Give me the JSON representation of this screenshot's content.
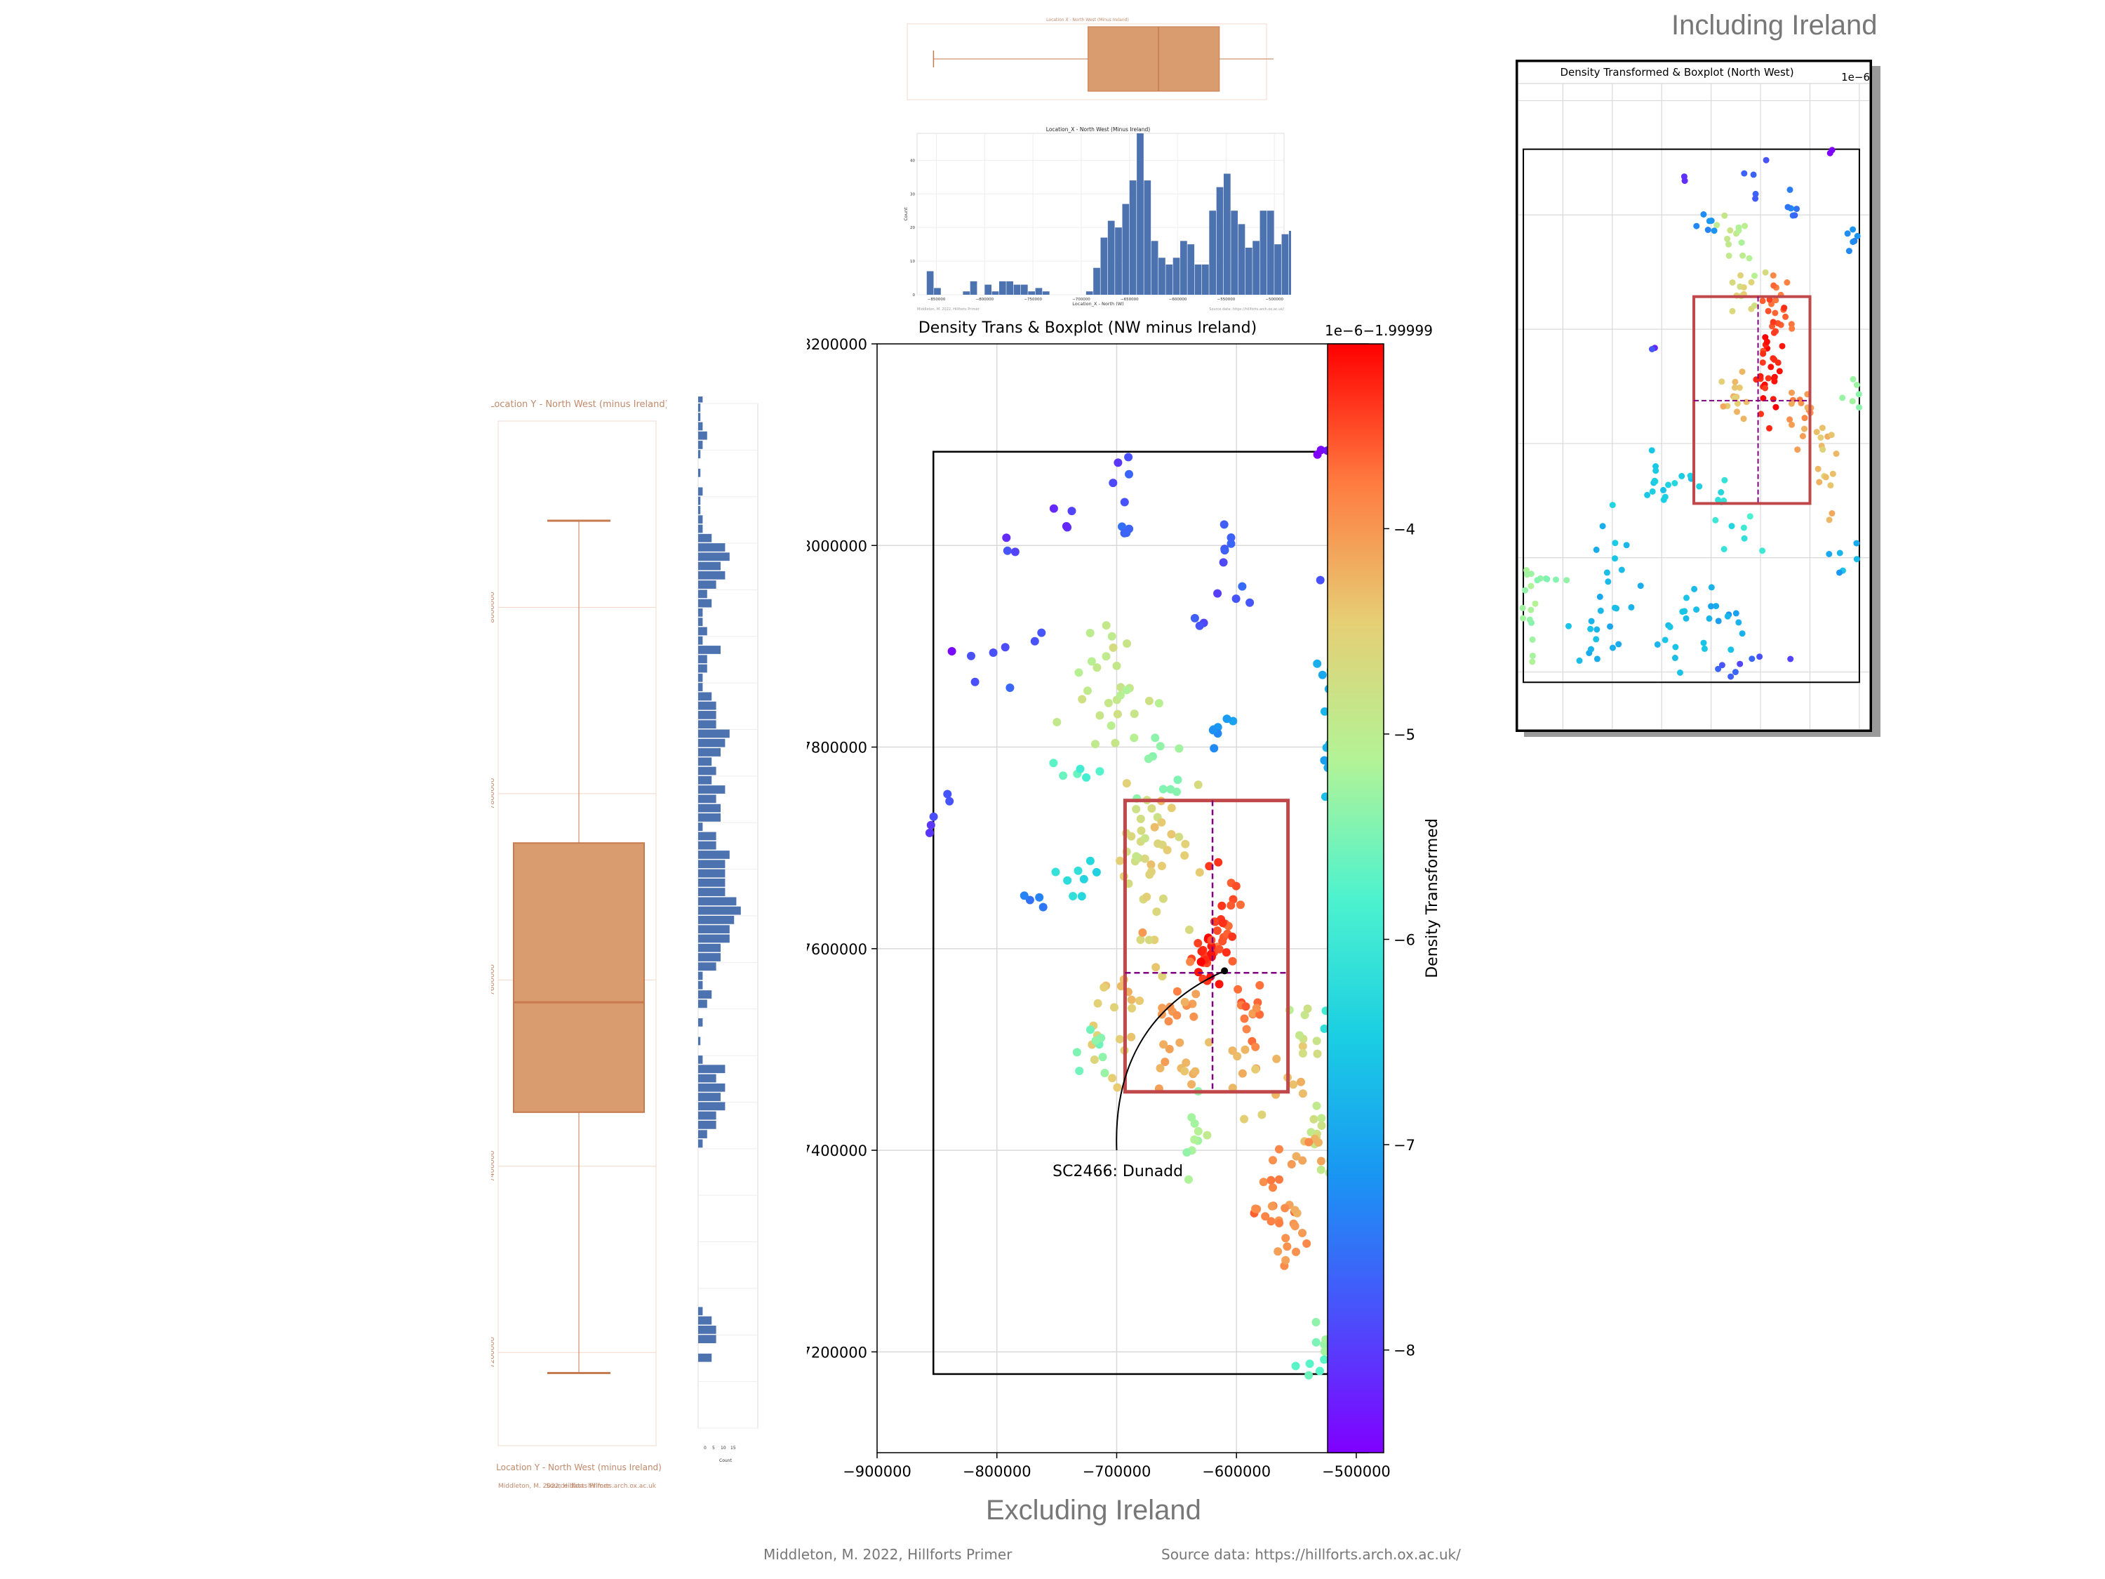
{
  "page": {
    "caption_excluding": "Excluding Ireland",
    "caption_including": "Including Ireland",
    "credit_left": "Middleton, M. 2022, Hillforts Primer",
    "credit_right": "Source data: https://hillforts.arch.ox.ac.uk/"
  },
  "colors": {
    "box_fill": "#d99c6e",
    "box_edge": "#c77a4f",
    "hist_bar": "#4c72b0",
    "frame": "#000000",
    "iqr_rect": "#c0484a",
    "median_line": "#800080",
    "grid": "#d9d9d9"
  },
  "chart_data": [
    {
      "id": "main-scatter",
      "type": "scatter",
      "title": "Density Trans & Boxplot (NW minus Ireland)",
      "colorbar_offset": "1e−6−1.99999",
      "colorbar_label": "Density Transformed",
      "colorbar_ticks": [
        "−4",
        "−5",
        "−6",
        "−7",
        "−8"
      ],
      "colorbar_values": [
        -4,
        -5,
        -6,
        -7,
        -8
      ],
      "colorbar_range": [
        -8.5,
        -3.1
      ],
      "colormap": "rainbow",
      "xlim": [
        -900000,
        -490000
      ],
      "ylim": [
        7100000,
        8200000
      ],
      "x_ticks": [
        "−900000",
        "−800000",
        "−700000",
        "−600000",
        "−500000"
      ],
      "x_tick_values": [
        -900000,
        -800000,
        -700000,
        -600000,
        -500000
      ],
      "y_ticks": [
        "8200000",
        "8000000",
        "7800000",
        "7600000",
        "7400000",
        "7200000"
      ],
      "y_tick_values": [
        8200000,
        8000000,
        7800000,
        7600000,
        7400000,
        7200000
      ],
      "grid": true,
      "frame": {
        "x0": -853000,
        "x1": -500000,
        "y0": 7178000,
        "y1": 8093000
      },
      "iqr_box": {
        "x0": -693000,
        "x1": -557000,
        "y0": 7458000,
        "y1": 7747000
      },
      "median": {
        "x": -620000,
        "y": 7576000
      },
      "annotation": {
        "text": "SC2466: Dunadd",
        "x": -610000,
        "y": 7578000,
        "text_x": -740000,
        "text_y": 7380000
      },
      "clusters": [
        {
          "x": -697000,
          "y": 8060000,
          "sx": 5000,
          "sy": 12000,
          "n": 5,
          "v": -7.8
        },
        {
          "x": -750000,
          "y": 8030000,
          "sx": 9000,
          "sy": 8000,
          "n": 4,
          "v": -8.1
        },
        {
          "x": -785000,
          "y": 8005000,
          "sx": 6000,
          "sy": 6000,
          "n": 3,
          "v": -8.0
        },
        {
          "x": -695000,
          "y": 8012000,
          "sx": 8000,
          "sy": 4000,
          "n": 4,
          "v": -7.6
        },
        {
          "x": -610000,
          "y": 7995000,
          "sx": 6000,
          "sy": 20000,
          "n": 6,
          "v": -7.7
        },
        {
          "x": -590000,
          "y": 7955000,
          "sx": 6000,
          "sy": 8000,
          "n": 3,
          "v": -7.9
        },
        {
          "x": -530000,
          "y": 8093000,
          "sx": 6000,
          "sy": 3000,
          "n": 3,
          "v": -8.4
        },
        {
          "x": -625000,
          "y": 7915000,
          "sx": 8000,
          "sy": 12000,
          "n": 4,
          "v": -7.8
        },
        {
          "x": -530000,
          "y": 7960000,
          "sx": 3000,
          "sy": 3000,
          "n": 1,
          "v": -7.7
        },
        {
          "x": -788000,
          "y": 7880000,
          "sx": 12000,
          "sy": 20000,
          "n": 7,
          "v": -7.8
        },
        {
          "x": -838000,
          "y": 7895000,
          "sx": 2000,
          "sy": 2000,
          "n": 1,
          "v": -8.5
        },
        {
          "x": -700000,
          "y": 7865000,
          "sx": 20000,
          "sy": 30000,
          "n": 28,
          "v": -4.9
        },
        {
          "x": -615000,
          "y": 7812000,
          "sx": 10000,
          "sy": 8000,
          "n": 7,
          "v": -7.2
        },
        {
          "x": -520000,
          "y": 7850000,
          "sx": 8000,
          "sy": 35000,
          "n": 14,
          "v": -6.9
        },
        {
          "x": -520000,
          "y": 7800000,
          "sx": 8000,
          "sy": 15000,
          "n": 6,
          "v": -7.1
        },
        {
          "x": -665000,
          "y": 7780000,
          "sx": 12000,
          "sy": 18000,
          "n": 10,
          "v": -5.4
        },
        {
          "x": -740000,
          "y": 7770000,
          "sx": 10000,
          "sy": 6000,
          "n": 6,
          "v": -5.7
        },
        {
          "x": -855000,
          "y": 7725000,
          "sx": 3000,
          "sy": 8000,
          "n": 3,
          "v": -8.0
        },
        {
          "x": -838000,
          "y": 7750000,
          "sx": 3000,
          "sy": 5000,
          "n": 2,
          "v": -7.8
        },
        {
          "x": -730000,
          "y": 7670000,
          "sx": 12000,
          "sy": 15000,
          "n": 8,
          "v": -6.2
        },
        {
          "x": -770000,
          "y": 7650000,
          "sx": 6000,
          "sy": 4000,
          "n": 4,
          "v": -7.4
        },
        {
          "x": -685000,
          "y": 7700000,
          "sx": 12000,
          "sy": 35000,
          "n": 22,
          "v": -4.7
        },
        {
          "x": -660000,
          "y": 7670000,
          "sx": 12000,
          "sy": 40000,
          "n": 22,
          "v": -4.5
        },
        {
          "x": -610000,
          "y": 7640000,
          "sx": 8000,
          "sy": 25000,
          "n": 20,
          "v": -3.6
        },
        {
          "x": -620000,
          "y": 7600000,
          "sx": 8000,
          "sy": 20000,
          "n": 25,
          "v": -3.35
        },
        {
          "x": -590000,
          "y": 7545000,
          "sx": 10000,
          "sy": 20000,
          "n": 14,
          "v": -3.7
        },
        {
          "x": -645000,
          "y": 7545000,
          "sx": 12000,
          "sy": 25000,
          "n": 14,
          "v": -4.0
        },
        {
          "x": -690000,
          "y": 7530000,
          "sx": 15000,
          "sy": 40000,
          "n": 22,
          "v": -4.4
        },
        {
          "x": -640000,
          "y": 7480000,
          "sx": 20000,
          "sy": 20000,
          "n": 14,
          "v": -4.2
        },
        {
          "x": -575000,
          "y": 7475000,
          "sx": 18000,
          "sy": 20000,
          "n": 14,
          "v": -4.3
        },
        {
          "x": -720000,
          "y": 7505000,
          "sx": 8000,
          "sy": 20000,
          "n": 8,
          "v": -5.4
        },
        {
          "x": -540000,
          "y": 7505000,
          "sx": 10000,
          "sy": 20000,
          "n": 8,
          "v": -4.8
        },
        {
          "x": -515000,
          "y": 7530000,
          "sx": 6000,
          "sy": 25000,
          "n": 12,
          "v": -6.1
        },
        {
          "x": -637000,
          "y": 7420000,
          "sx": 8000,
          "sy": 20000,
          "n": 10,
          "v": -5.2
        },
        {
          "x": -530000,
          "y": 7410000,
          "sx": 8000,
          "sy": 25000,
          "n": 12,
          "v": -4.9
        },
        {
          "x": -570000,
          "y": 7345000,
          "sx": 10000,
          "sy": 25000,
          "n": 20,
          "v": -3.9
        },
        {
          "x": -555000,
          "y": 7310000,
          "sx": 8000,
          "sy": 15000,
          "n": 10,
          "v": -4.0
        },
        {
          "x": -540000,
          "y": 7390000,
          "sx": 8000,
          "sy": 15000,
          "n": 8,
          "v": -4.2
        },
        {
          "x": -510000,
          "y": 7330000,
          "sx": 6000,
          "sy": 30000,
          "n": 10,
          "v": -5.6
        },
        {
          "x": -530000,
          "y": 7210000,
          "sx": 6000,
          "sy": 12000,
          "n": 5,
          "v": -5.3
        },
        {
          "x": -518000,
          "y": 7185000,
          "sx": 15000,
          "sy": 4000,
          "n": 10,
          "v": -5.6
        }
      ]
    },
    {
      "id": "top-hist",
      "type": "bar",
      "title": "Location_X - North West (Minus Ireland)",
      "xlabel": "Location_X - North (W)",
      "ylabel": "Count",
      "footer_left": "Middleton, M. 2022, Hillforts Primer",
      "footer_right": "Source data: https://hillforts.arch.ox.ac.uk/",
      "xlim": [
        -870000,
        -490000
      ],
      "ylim": [
        0,
        48
      ],
      "x_ticks": [
        "−850000",
        "−800000",
        "−750000",
        "−700000",
        "−650000",
        "−600000",
        "−550000",
        "−500000"
      ],
      "x_tick_values": [
        -850000,
        -800000,
        -750000,
        -700000,
        -650000,
        -600000,
        -550000,
        -500000
      ],
      "y_ticks": [
        "0",
        "10",
        "20",
        "30",
        "40"
      ],
      "y_tick_values": [
        0,
        10,
        20,
        30,
        40
      ],
      "bin_start": -860000,
      "bin_width": 7500,
      "values": [
        7,
        2,
        0,
        0,
        0,
        1,
        4,
        0,
        3,
        1,
        4,
        4,
        3,
        3,
        1,
        2,
        1,
        0,
        0,
        0,
        0,
        0,
        1,
        8,
        17,
        22,
        20,
        27,
        34,
        48,
        34,
        16,
        11,
        9,
        11,
        16,
        15,
        9,
        9,
        25,
        32,
        36,
        25,
        21,
        14,
        16,
        25,
        25,
        15,
        18,
        19,
        19,
        21,
        22,
        28
      ]
    },
    {
      "id": "top-boxplot",
      "type": "boxplot",
      "orientation": "horizontal",
      "xlim": [
        -870000,
        -490000
      ],
      "whiskers": [
        -853000,
        -500000
      ],
      "q1": -693000,
      "median": -620000,
      "q3": -557000
    },
    {
      "id": "left-boxplot",
      "type": "boxplot",
      "orientation": "vertical",
      "ylim": [
        7100000,
        8200000
      ],
      "whiskers": [
        7178000,
        8093000
      ],
      "q1": 7458000,
      "median": 7576000,
      "q3": 7747000
    },
    {
      "id": "left-hist",
      "type": "bar",
      "orientation": "horizontal",
      "ylim": [
        7100000,
        8200000
      ],
      "bin_start": 7170000,
      "bin_width": 10000,
      "values": [
        6,
        0,
        8,
        8,
        6,
        2,
        0,
        0,
        0,
        0,
        0,
        0,
        0,
        0,
        0,
        0,
        0,
        0,
        0,
        0,
        0,
        0,
        0,
        2,
        4,
        8,
        8,
        12,
        10,
        12,
        8,
        12,
        2,
        0,
        1,
        0,
        2,
        0,
        4,
        6,
        2,
        2,
        8,
        10,
        10,
        14,
        14,
        16,
        19,
        17,
        12,
        12,
        12,
        12,
        14,
        8,
        8,
        2,
        10,
        10,
        8,
        12,
        6,
        8,
        6,
        10,
        12,
        14,
        8,
        8,
        8,
        6,
        2,
        2,
        4,
        4,
        10,
        2,
        4,
        2,
        2,
        6,
        4,
        8,
        12,
        10,
        14,
        12,
        6,
        2,
        2,
        1,
        1,
        2,
        0,
        1,
        0,
        1,
        2,
        4,
        2,
        1,
        1,
        2,
        3,
        1,
        0,
        2,
        0,
        2,
        3,
        0
      ]
    },
    {
      "id": "inset-scatter",
      "type": "scatter",
      "title": "Density Transformed & Boxplot (North West)",
      "colorbar_offset": "1e−6",
      "xlim": [
        -1190000,
        -480000
      ],
      "ylim": [
        7100000,
        8230000
      ],
      "frame": {
        "x0": -1180000,
        "x1": -500000,
        "y0": 7182000,
        "y1": 8115000
      },
      "iqr_box": {
        "x0": -835000,
        "x1": -600000,
        "y0": 7495000,
        "y1": 7857000
      },
      "median": {
        "x": -705000,
        "y": 7675000
      },
      "clusters": [
        {
          "x": -1170000,
          "y": 7270000,
          "sx": 10000,
          "sy": 50000,
          "n": 12,
          "v": -5.2
        },
        {
          "x": -1130000,
          "y": 7365000,
          "sx": 25000,
          "sy": 5000,
          "n": 8,
          "v": -5.4
        },
        {
          "x": -1040000,
          "y": 7250000,
          "sx": 30000,
          "sy": 25000,
          "n": 12,
          "v": -6.8
        },
        {
          "x": -990000,
          "y": 7350000,
          "sx": 30000,
          "sy": 60000,
          "n": 14,
          "v": -6.7
        },
        {
          "x": -900000,
          "y": 7530000,
          "sx": 40000,
          "sy": 30000,
          "n": 18,
          "v": -6.5
        },
        {
          "x": -870000,
          "y": 7270000,
          "sx": 40000,
          "sy": 40000,
          "n": 16,
          "v": -6.6
        },
        {
          "x": -760000,
          "y": 7290000,
          "sx": 30000,
          "sy": 30000,
          "n": 10,
          "v": -6.9
        },
        {
          "x": -720000,
          "y": 7200000,
          "sx": 40000,
          "sy": 15000,
          "n": 8,
          "v": -7.8
        },
        {
          "x": -745000,
          "y": 7950000,
          "sx": 15000,
          "sy": 35000,
          "n": 14,
          "v": -5.0
        },
        {
          "x": -720000,
          "y": 8060000,
          "sx": 15000,
          "sy": 25000,
          "n": 5,
          "v": -7.7
        },
        {
          "x": -820000,
          "y": 7980000,
          "sx": 25000,
          "sy": 20000,
          "n": 6,
          "v": -7.3
        },
        {
          "x": -640000,
          "y": 8000000,
          "sx": 10000,
          "sy": 30000,
          "n": 6,
          "v": -7.4
        },
        {
          "x": -510000,
          "y": 7960000,
          "sx": 10000,
          "sy": 25000,
          "n": 8,
          "v": -7.2
        },
        {
          "x": -730000,
          "y": 7865000,
          "sx": 20000,
          "sy": 25000,
          "n": 12,
          "v": -4.6
        },
        {
          "x": -670000,
          "y": 7830000,
          "sx": 20000,
          "sy": 30000,
          "n": 20,
          "v": -3.7
        },
        {
          "x": -680000,
          "y": 7730000,
          "sx": 12000,
          "sy": 40000,
          "n": 30,
          "v": -3.3
        },
        {
          "x": -745000,
          "y": 7680000,
          "sx": 15000,
          "sy": 25000,
          "n": 14,
          "v": -4.3
        },
        {
          "x": -620000,
          "y": 7680000,
          "sx": 15000,
          "sy": 30000,
          "n": 16,
          "v": -4.0
        },
        {
          "x": -560000,
          "y": 7550000,
          "sx": 15000,
          "sy": 35000,
          "n": 16,
          "v": -4.3
        },
        {
          "x": -515000,
          "y": 7700000,
          "sx": 10000,
          "sy": 25000,
          "n": 6,
          "v": -5.3
        },
        {
          "x": -530000,
          "y": 7400000,
          "sx": 15000,
          "sy": 20000,
          "n": 6,
          "v": -6.8
        },
        {
          "x": -780000,
          "y": 7480000,
          "sx": 20000,
          "sy": 40000,
          "n": 8,
          "v": -6.2
        },
        {
          "x": -720000,
          "y": 7440000,
          "sx": 15000,
          "sy": 15000,
          "n": 4,
          "v": -6.0
        },
        {
          "x": -855000,
          "y": 8060000,
          "sx": 5000,
          "sy": 5000,
          "n": 2,
          "v": -8.0
        },
        {
          "x": -920000,
          "y": 7760000,
          "sx": 4000,
          "sy": 10000,
          "n": 2,
          "v": -7.9
        },
        {
          "x": -560000,
          "y": 8110000,
          "sx": 4000,
          "sy": 3000,
          "n": 2,
          "v": -8.5
        }
      ]
    }
  ]
}
